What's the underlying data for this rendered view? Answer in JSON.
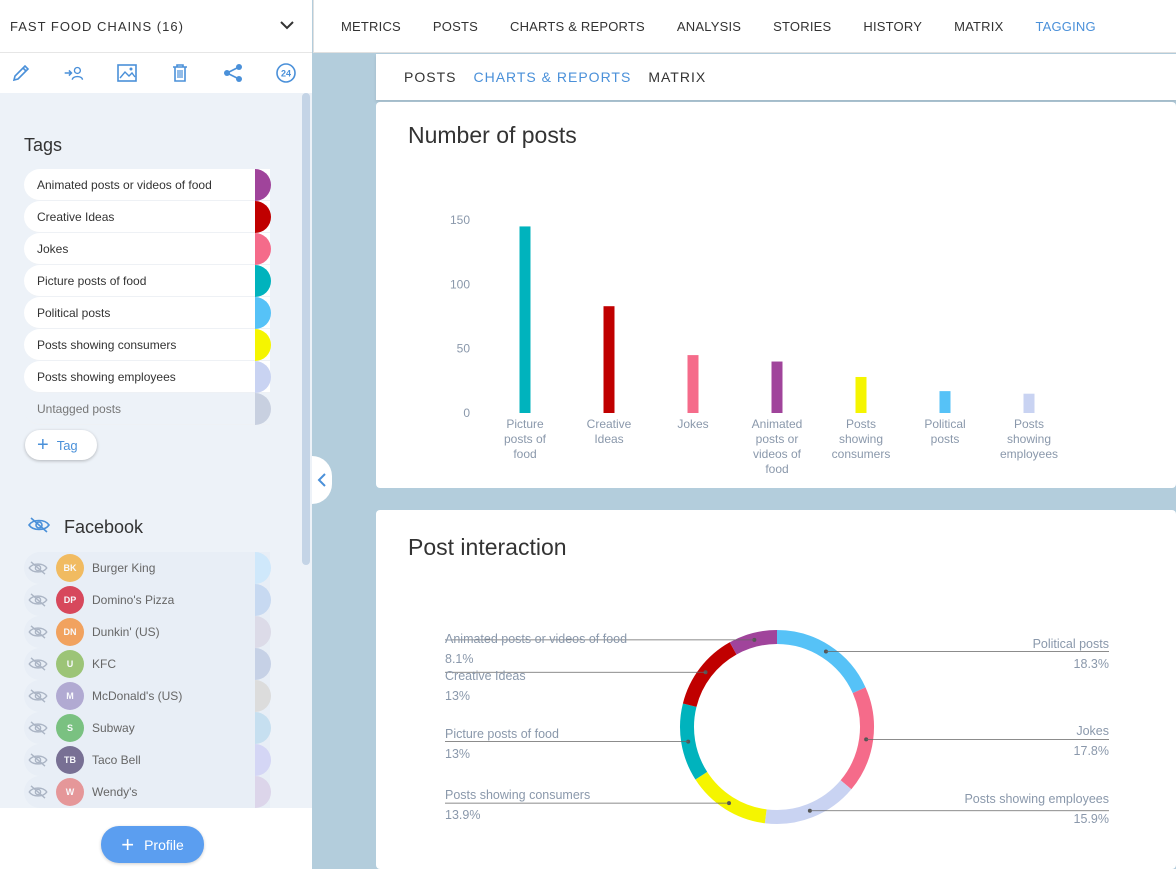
{
  "left_panel": {
    "header_title": "FAST FOOD CHAINS (16)",
    "toolbar_icons": [
      "pencil-icon",
      "assign-user-icon",
      "image-icon",
      "trash-icon",
      "share-icon",
      "refresh-24-icon"
    ],
    "tags_title": "Tags",
    "tags": [
      {
        "label": "Animated posts or videos of food",
        "color": "#a0449b"
      },
      {
        "label": "Creative Ideas",
        "color": "#c00000"
      },
      {
        "label": "Jokes",
        "color": "#f56b8a"
      },
      {
        "label": "Picture posts of food",
        "color": "#00b3bd"
      },
      {
        "label": "Political posts",
        "color": "#56c2f7"
      },
      {
        "label": "Posts showing consumers",
        "color": "#f5f500"
      },
      {
        "label": "Posts showing employees",
        "color": "#c9d3f2"
      },
      {
        "label": "Untagged posts",
        "color": "#c8d0e0"
      }
    ],
    "add_tag_label": "Tag",
    "facebook_title": "Facebook",
    "pages": [
      {
        "label": "Burger King",
        "logo_text": "BK",
        "logo_color": "#f5a623",
        "swatch": "#cfe8fb"
      },
      {
        "label": "Domino's Pizza",
        "logo_text": "DP",
        "logo_color": "#d0021b",
        "swatch": "#c7d9f1"
      },
      {
        "label": "Dunkin' (US)",
        "logo_text": "DN",
        "logo_color": "#f58220",
        "swatch": "#dcdbe8"
      },
      {
        "label": "KFC",
        "logo_text": "U",
        "logo_color": "#7cb342",
        "swatch": "#c6d1e6"
      },
      {
        "label": "McDonald's (US)",
        "logo_text": "M",
        "logo_color": "#9b8ec4",
        "swatch": "#dcdcdc"
      },
      {
        "label": "Subway",
        "logo_text": "S",
        "logo_color": "#4caf50",
        "swatch": "#c6dff0"
      },
      {
        "label": "Taco Bell",
        "logo_text": "TB",
        "logo_color": "#4a3c6b",
        "swatch": "#d4d6f5"
      },
      {
        "label": "Wendy's",
        "logo_text": "W",
        "logo_color": "#e57373",
        "swatch": "#dcd5ea"
      }
    ],
    "profile_label": "Profile"
  },
  "top_nav": {
    "items": [
      "METRICS",
      "POSTS",
      "CHARTS & REPORTS",
      "ANALYSIS",
      "STORIES",
      "HISTORY",
      "MATRIX",
      "TAGGING"
    ],
    "active": "TAGGING"
  },
  "sub_nav": {
    "items": [
      "POSTS",
      "CHARTS & REPORTS",
      "MATRIX"
    ],
    "active": "CHARTS & REPORTS"
  },
  "chart_data": [
    {
      "type": "bar",
      "title": "Number of posts",
      "categories": [
        "Picture posts of food",
        "Creative Ideas",
        "Jokes",
        "Animated posts or videos of food",
        "Posts showing consumers",
        "Political posts",
        "Posts showing employees"
      ],
      "values": [
        145,
        83,
        45,
        40,
        28,
        17,
        15
      ],
      "colors": [
        "#00b3bd",
        "#c00000",
        "#f56b8a",
        "#a0449b",
        "#f5f500",
        "#56c2f7",
        "#c9d3f2"
      ],
      "yticks": [
        0,
        50,
        100,
        150
      ],
      "ylim": [
        0,
        150
      ]
    },
    {
      "type": "pie",
      "title": "Post interaction",
      "slices": [
        {
          "label": "Political posts",
          "value": 18.3,
          "pct": "18.3%",
          "color": "#56c2f7"
        },
        {
          "label": "Jokes",
          "value": 17.8,
          "pct": "17.8%",
          "color": "#f56b8a"
        },
        {
          "label": "Posts showing employees",
          "value": 15.9,
          "pct": "15.9%",
          "color": "#c9d3f2"
        },
        {
          "label": "Posts showing consumers",
          "value": 13.9,
          "pct": "13.9%",
          "color": "#f5f500"
        },
        {
          "label": "Picture posts of food",
          "value": 13,
          "pct": "13%",
          "color": "#00b3bd"
        },
        {
          "label": "Creative Ideas",
          "value": 13,
          "pct": "13%",
          "color": "#c00000"
        },
        {
          "label": "Animated posts or videos of food",
          "value": 8.1,
          "pct": "8.1%",
          "color": "#a0449b"
        }
      ]
    }
  ]
}
